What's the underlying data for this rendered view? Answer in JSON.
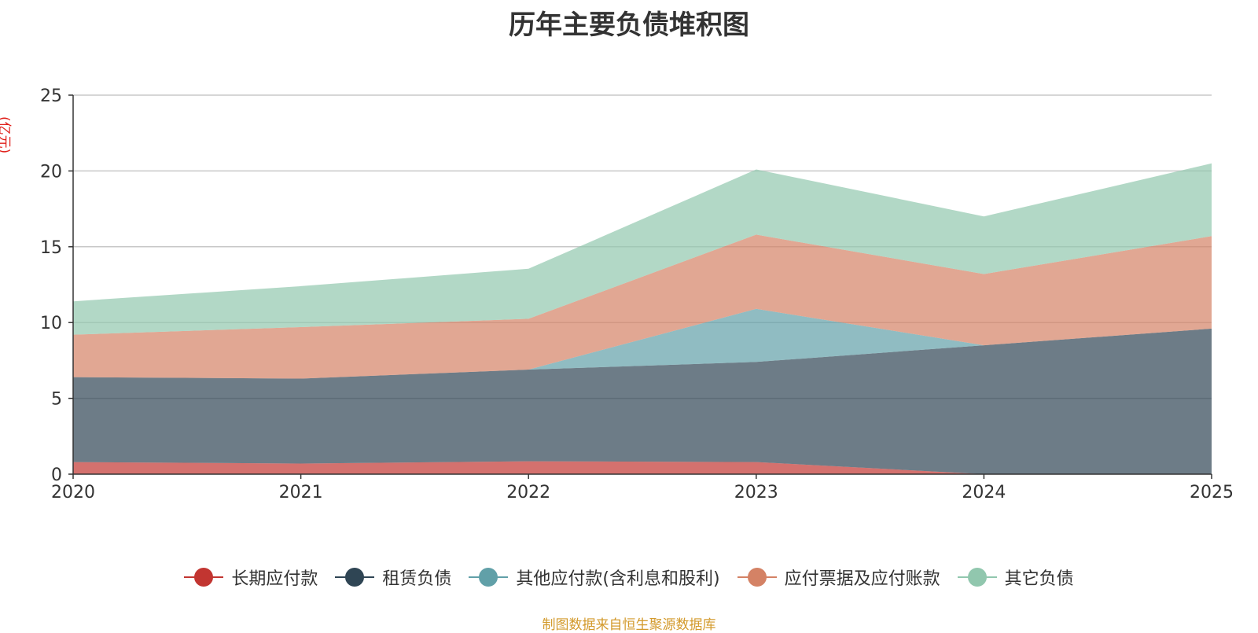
{
  "chart_data": {
    "type": "area",
    "stacked": true,
    "title": "历年主要负债堆积图",
    "ylabel": "(亿元)",
    "xlabel": "",
    "categories": [
      "2020",
      "2021",
      "2022",
      "2023",
      "2024",
      "2025"
    ],
    "ylim": [
      0,
      25
    ],
    "yticks": [
      0,
      5,
      10,
      15,
      20,
      25
    ],
    "grid": true,
    "legend_position": "bottom",
    "series": [
      {
        "name": "长期应付款",
        "color": "#c23531",
        "values": [
          0.8,
          0.7,
          0.85,
          0.8,
          0.0,
          0.0
        ]
      },
      {
        "name": "租赁负债",
        "color": "#2f4554",
        "values": [
          5.6,
          5.6,
          6.05,
          6.6,
          8.5,
          9.6
        ]
      },
      {
        "name": "其他应付款(含利息和股利)",
        "color": "#61a0a8",
        "values": [
          0.0,
          0.0,
          0.0,
          3.5,
          0.0,
          0.0
        ]
      },
      {
        "name": "应付票据及应付账款",
        "color": "#d48265",
        "values": [
          2.8,
          3.4,
          3.35,
          4.9,
          4.7,
          6.1
        ]
      },
      {
        "name": "其它负债",
        "color": "#91c7ae",
        "values": [
          2.2,
          2.7,
          3.3,
          4.3,
          3.8,
          4.8
        ]
      }
    ]
  },
  "source_text": "制图数据来自恒生聚源数据库"
}
